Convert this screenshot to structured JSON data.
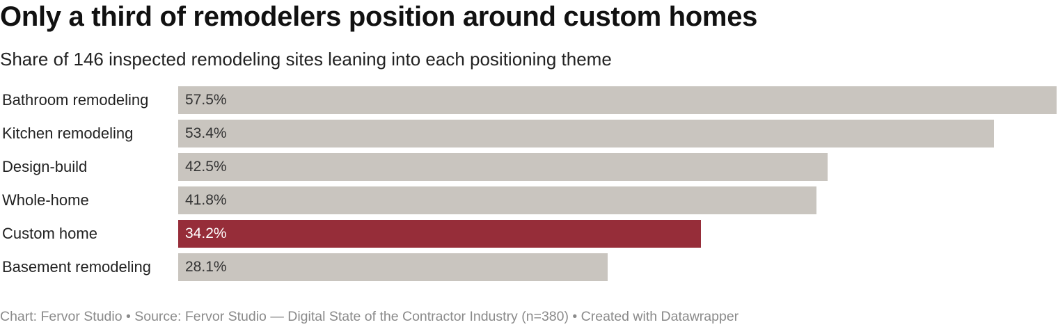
{
  "header": {
    "title": "Only a third of remodelers position around custom homes",
    "subtitle": "Share of 146 inspected remodeling sites leaning into each positioning theme"
  },
  "footer": {
    "text": "Chart: Fervor Studio • Source: Fervor Studio — Digital State of the Contractor Industry (n=380) • Created with Datawrapper"
  },
  "colors": {
    "bar_default": "#c9c5bf",
    "bar_highlight": "#962d39",
    "value_text_default": "#333333",
    "value_text_highlight": "#ffffff"
  },
  "chart_data": {
    "type": "bar",
    "orientation": "horizontal",
    "categories": [
      "Bathroom remodeling",
      "Kitchen remodeling",
      "Design-build",
      "Whole-home",
      "Custom home",
      "Basement remodeling"
    ],
    "values": [
      57.5,
      53.4,
      42.5,
      41.8,
      34.2,
      28.1
    ],
    "value_labels": [
      "57.5%",
      "53.4%",
      "42.5%",
      "41.8%",
      "34.2%",
      "28.1%"
    ],
    "highlight": "Custom home",
    "unit": "%",
    "xlim": [
      0,
      57.5
    ],
    "grid": false
  }
}
